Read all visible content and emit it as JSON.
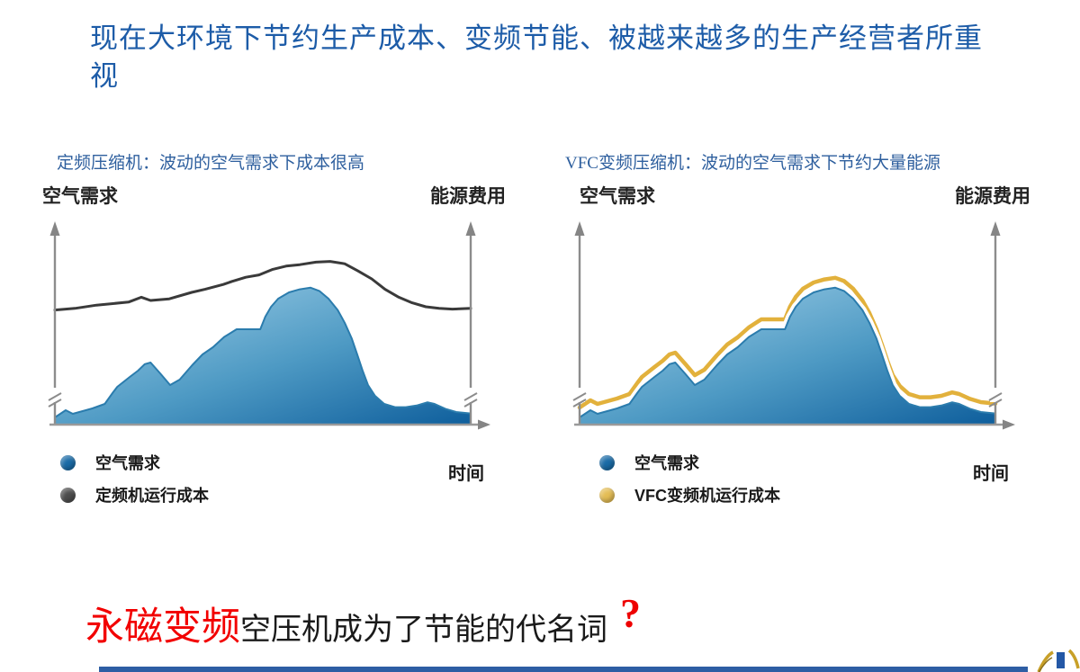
{
  "page": {
    "title": "现在大环境下节约生产成本、变频节能、被越来越多的生产经营者所重视",
    "title_color": "#1D5CA8",
    "statement": {
      "highlight": "永磁变频",
      "rest": "空压机成为了节能的代名词",
      "question_mark": "?",
      "highlight_color": "#F20000",
      "question_color": "#EE0000"
    },
    "footer_bar_color": "#2E5EA4",
    "logo": "partial-company-logo"
  },
  "chart_data": [
    {
      "type": "area",
      "title": "定频压缩机：波动的空气需求下成本很高",
      "title_color": "#2E5F9E",
      "y_left_label": "空气需求",
      "y_right_label": "能源费用",
      "x_label": "时间",
      "axes": {
        "grid": false,
        "ticks": "none",
        "y_axis_break": true,
        "x_range_pct": [
          0,
          100
        ],
        "y_range_pct": [
          0,
          100
        ]
      },
      "legend_position": "bottom-left",
      "legend": [
        {
          "label": "空气需求",
          "color": "#1A6BA6"
        },
        {
          "label": "定频机运行成本",
          "color": "#4D4D4D"
        }
      ],
      "series": [
        {
          "name": "空气需求",
          "kind": "area",
          "fill_start": "#A6D3EA",
          "fill_mid": "#4E9AC4",
          "fill_end": "#0E5E9C",
          "stroke": "#2B7CAD",
          "points": [
            [
              0,
              4
            ],
            [
              2.6,
              8
            ],
            [
              4.3,
              6
            ],
            [
              9,
              9
            ],
            [
              12,
              11.5
            ],
            [
              14,
              18
            ],
            [
              15,
              21
            ],
            [
              18,
              26.5
            ],
            [
              20,
              30
            ],
            [
              21.6,
              33.6
            ],
            [
              23,
              34.5
            ],
            [
              25.5,
              28
            ],
            [
              27.7,
              22
            ],
            [
              30,
              25
            ],
            [
              33,
              33
            ],
            [
              35.5,
              39
            ],
            [
              38,
              43
            ],
            [
              40.7,
              48.7
            ],
            [
              43,
              52
            ],
            [
              43.7,
              53
            ],
            [
              49.4,
              53
            ],
            [
              50.6,
              60
            ],
            [
              52,
              65.5
            ],
            [
              53.7,
              70
            ],
            [
              56.3,
              73.5
            ],
            [
              58.9,
              75.2
            ],
            [
              61.5,
              76.1
            ],
            [
              63.6,
              74.3
            ],
            [
              65.8,
              70
            ],
            [
              68,
              63.7
            ],
            [
              69.7,
              56.6
            ],
            [
              71.4,
              47.8
            ],
            [
              72.7,
              39
            ],
            [
              74,
              30
            ],
            [
              75.3,
              22
            ],
            [
              77,
              16
            ],
            [
              79.2,
              11.5
            ],
            [
              81.8,
              9.7
            ],
            [
              84.4,
              9.7
            ],
            [
              87,
              10.6
            ],
            [
              89.6,
              12.4
            ],
            [
              91.3,
              11.5
            ],
            [
              93.9,
              8.8
            ],
            [
              96.5,
              7
            ],
            [
              100,
              6.2
            ]
          ]
        },
        {
          "name": "定频机运行成本",
          "kind": "line",
          "stroke": "#3A3A3A",
          "width": 3,
          "points": [
            [
              0,
              63.7
            ],
            [
              4.8,
              64.6
            ],
            [
              10,
              66.4
            ],
            [
              17.7,
              68.1
            ],
            [
              20.8,
              70.8
            ],
            [
              23,
              69
            ],
            [
              27.5,
              69.9
            ],
            [
              32.9,
              73.5
            ],
            [
              36.1,
              75.2
            ],
            [
              40.5,
              77.9
            ],
            [
              42.6,
              79.6
            ],
            [
              45.9,
              81.9
            ],
            [
              49.1,
              83.2
            ],
            [
              52.4,
              86.3
            ],
            [
              55.6,
              88.1
            ],
            [
              58.9,
              88.9
            ],
            [
              62.8,
              90.3
            ],
            [
              66.2,
              90.7
            ],
            [
              69.7,
              89.4
            ],
            [
              72.9,
              85.4
            ],
            [
              76.2,
              81
            ],
            [
              79.4,
              75.2
            ],
            [
              82.7,
              70.8
            ],
            [
              85.9,
              67.7
            ],
            [
              89.2,
              65.5
            ],
            [
              92.4,
              64.6
            ],
            [
              95.6,
              64.2
            ],
            [
              100,
              64.6
            ]
          ]
        }
      ]
    },
    {
      "type": "area",
      "title": "VFC变频压缩机：波动的空气需求下节约大量能源",
      "title_color": "#2E5F9E",
      "y_left_label": "空气需求",
      "y_right_label": "能源费用",
      "x_label": "时间",
      "axes": {
        "grid": false,
        "ticks": "none",
        "y_axis_break": true,
        "x_range_pct": [
          0,
          100
        ],
        "y_range_pct": [
          0,
          100
        ]
      },
      "legend_position": "bottom-left",
      "legend": [
        {
          "label": "空气需求",
          "color": "#1A6BA6"
        },
        {
          "label": "VFC变频机运行成本",
          "color": "#E4BD55"
        }
      ],
      "series": [
        {
          "name": "空气需求",
          "kind": "area",
          "fill_start": "#A6D3EA",
          "fill_mid": "#4E9AC4",
          "fill_end": "#0E5E9C",
          "stroke": "#2B7CAD",
          "points": [
            [
              0,
              4
            ],
            [
              2.6,
              8
            ],
            [
              4.3,
              6
            ],
            [
              9,
              9
            ],
            [
              12,
              11.5
            ],
            [
              14,
              18
            ],
            [
              15,
              21
            ],
            [
              18,
              26.5
            ],
            [
              20,
              30
            ],
            [
              21.6,
              33.6
            ],
            [
              23,
              34.5
            ],
            [
              25.5,
              28
            ],
            [
              27.7,
              22
            ],
            [
              30,
              25
            ],
            [
              33,
              33
            ],
            [
              35.5,
              39
            ],
            [
              38,
              43
            ],
            [
              40.7,
              48.7
            ],
            [
              43,
              52
            ],
            [
              43.7,
              53
            ],
            [
              49.4,
              53
            ],
            [
              50.6,
              60
            ],
            [
              52,
              65.5
            ],
            [
              53.7,
              70
            ],
            [
              56.3,
              73.5
            ],
            [
              58.9,
              75.2
            ],
            [
              61.5,
              76.1
            ],
            [
              63.6,
              74.3
            ],
            [
              65.8,
              70
            ],
            [
              68,
              63.7
            ],
            [
              69.7,
              56.6
            ],
            [
              71.4,
              47.8
            ],
            [
              72.7,
              39
            ],
            [
              74,
              30
            ],
            [
              75.3,
              22
            ],
            [
              77,
              16
            ],
            [
              79.2,
              11.5
            ],
            [
              81.8,
              9.7
            ],
            [
              84.4,
              9.7
            ],
            [
              87,
              10.6
            ],
            [
              89.6,
              12.4
            ],
            [
              91.3,
              11.5
            ],
            [
              93.9,
              8.8
            ],
            [
              96.5,
              7
            ],
            [
              100,
              6.2
            ]
          ]
        },
        {
          "name": "VFC变频机运行成本",
          "kind": "line",
          "stroke": "#E2B13C",
          "width": 4.5,
          "points": [
            [
              0,
              9.5
            ],
            [
              2.6,
              13.5
            ],
            [
              4.3,
              11.5
            ],
            [
              9,
              14.5
            ],
            [
              12,
              17
            ],
            [
              14,
              23.5
            ],
            [
              15,
              26.5
            ],
            [
              18,
              32
            ],
            [
              20,
              35.5
            ],
            [
              21.6,
              39
            ],
            [
              23,
              40
            ],
            [
              25.5,
              33.5
            ],
            [
              27.7,
              27.5
            ],
            [
              30,
              30.5
            ],
            [
              33,
              38.5
            ],
            [
              35.5,
              44.5
            ],
            [
              38,
              48.5
            ],
            [
              40.7,
              54
            ],
            [
              43,
              57.5
            ],
            [
              43.7,
              58.5
            ],
            [
              49.4,
              58.5
            ],
            [
              50.6,
              65.5
            ],
            [
              52,
              71
            ],
            [
              53.7,
              75.5
            ],
            [
              56.3,
              79
            ],
            [
              58.9,
              80.7
            ],
            [
              61.5,
              81.6
            ],
            [
              63.6,
              79.8
            ],
            [
              65.8,
              75.5
            ],
            [
              68,
              69
            ],
            [
              69.7,
              62
            ],
            [
              71.4,
              53
            ],
            [
              72.7,
              44.5
            ],
            [
              74,
              35.5
            ],
            [
              75.3,
              27.5
            ],
            [
              77,
              21.5
            ],
            [
              79.2,
              17
            ],
            [
              81.8,
              15.2
            ],
            [
              84.4,
              15.2
            ],
            [
              87,
              16
            ],
            [
              89.6,
              17.9
            ],
            [
              91.3,
              17
            ],
            [
              93.9,
              14.3
            ],
            [
              96.5,
              12.5
            ],
            [
              100,
              11.7
            ]
          ]
        }
      ]
    }
  ]
}
